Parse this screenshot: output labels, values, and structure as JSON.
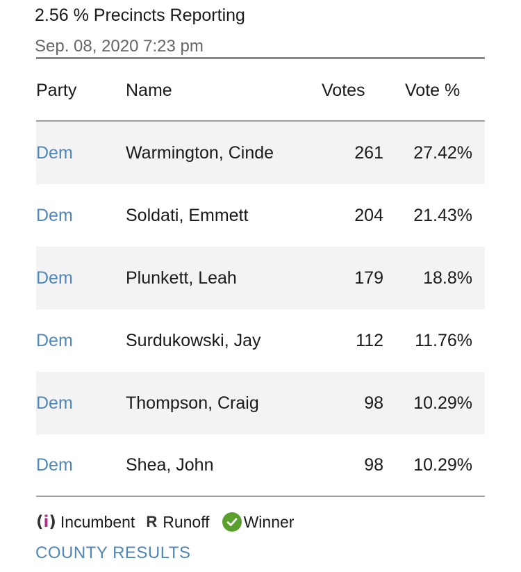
{
  "summary": {
    "precincts_reporting": "2.56 % Precincts Reporting",
    "updated": "Sep. 08, 2020 7:23 pm"
  },
  "table": {
    "headers": [
      "Party",
      "Name",
      "Votes",
      "Vote %"
    ],
    "rows": [
      {
        "party": "Dem",
        "name": "Warmington, Cinde",
        "votes": "261",
        "pct": "27.42%"
      },
      {
        "party": "Dem",
        "name": "Soldati, Emmett",
        "votes": "204",
        "pct": "21.43%"
      },
      {
        "party": "Dem",
        "name": "Plunkett, Leah",
        "votes": "179",
        "pct": "18.8%"
      },
      {
        "party": "Dem",
        "name": "Surdukowski, Jay",
        "votes": "112",
        "pct": "11.76%"
      },
      {
        "party": "Dem",
        "name": "Thompson, Craig",
        "votes": "98",
        "pct": "10.29%"
      },
      {
        "party": "Dem",
        "name": "Shea, John",
        "votes": "98",
        "pct": "10.29%"
      }
    ]
  },
  "legend": {
    "incumbent_symbol": "i",
    "incumbent_label": "Incumbent",
    "runoff_symbol": "R",
    "runoff_label": "Runoff",
    "winner_label": "Winner"
  },
  "links": {
    "county_results": "COUNTY RESULTS"
  },
  "colors": {
    "party_link": "#4f87b8",
    "incumbent_mark": "#b0308a",
    "winner_check": "#5aa02c"
  }
}
